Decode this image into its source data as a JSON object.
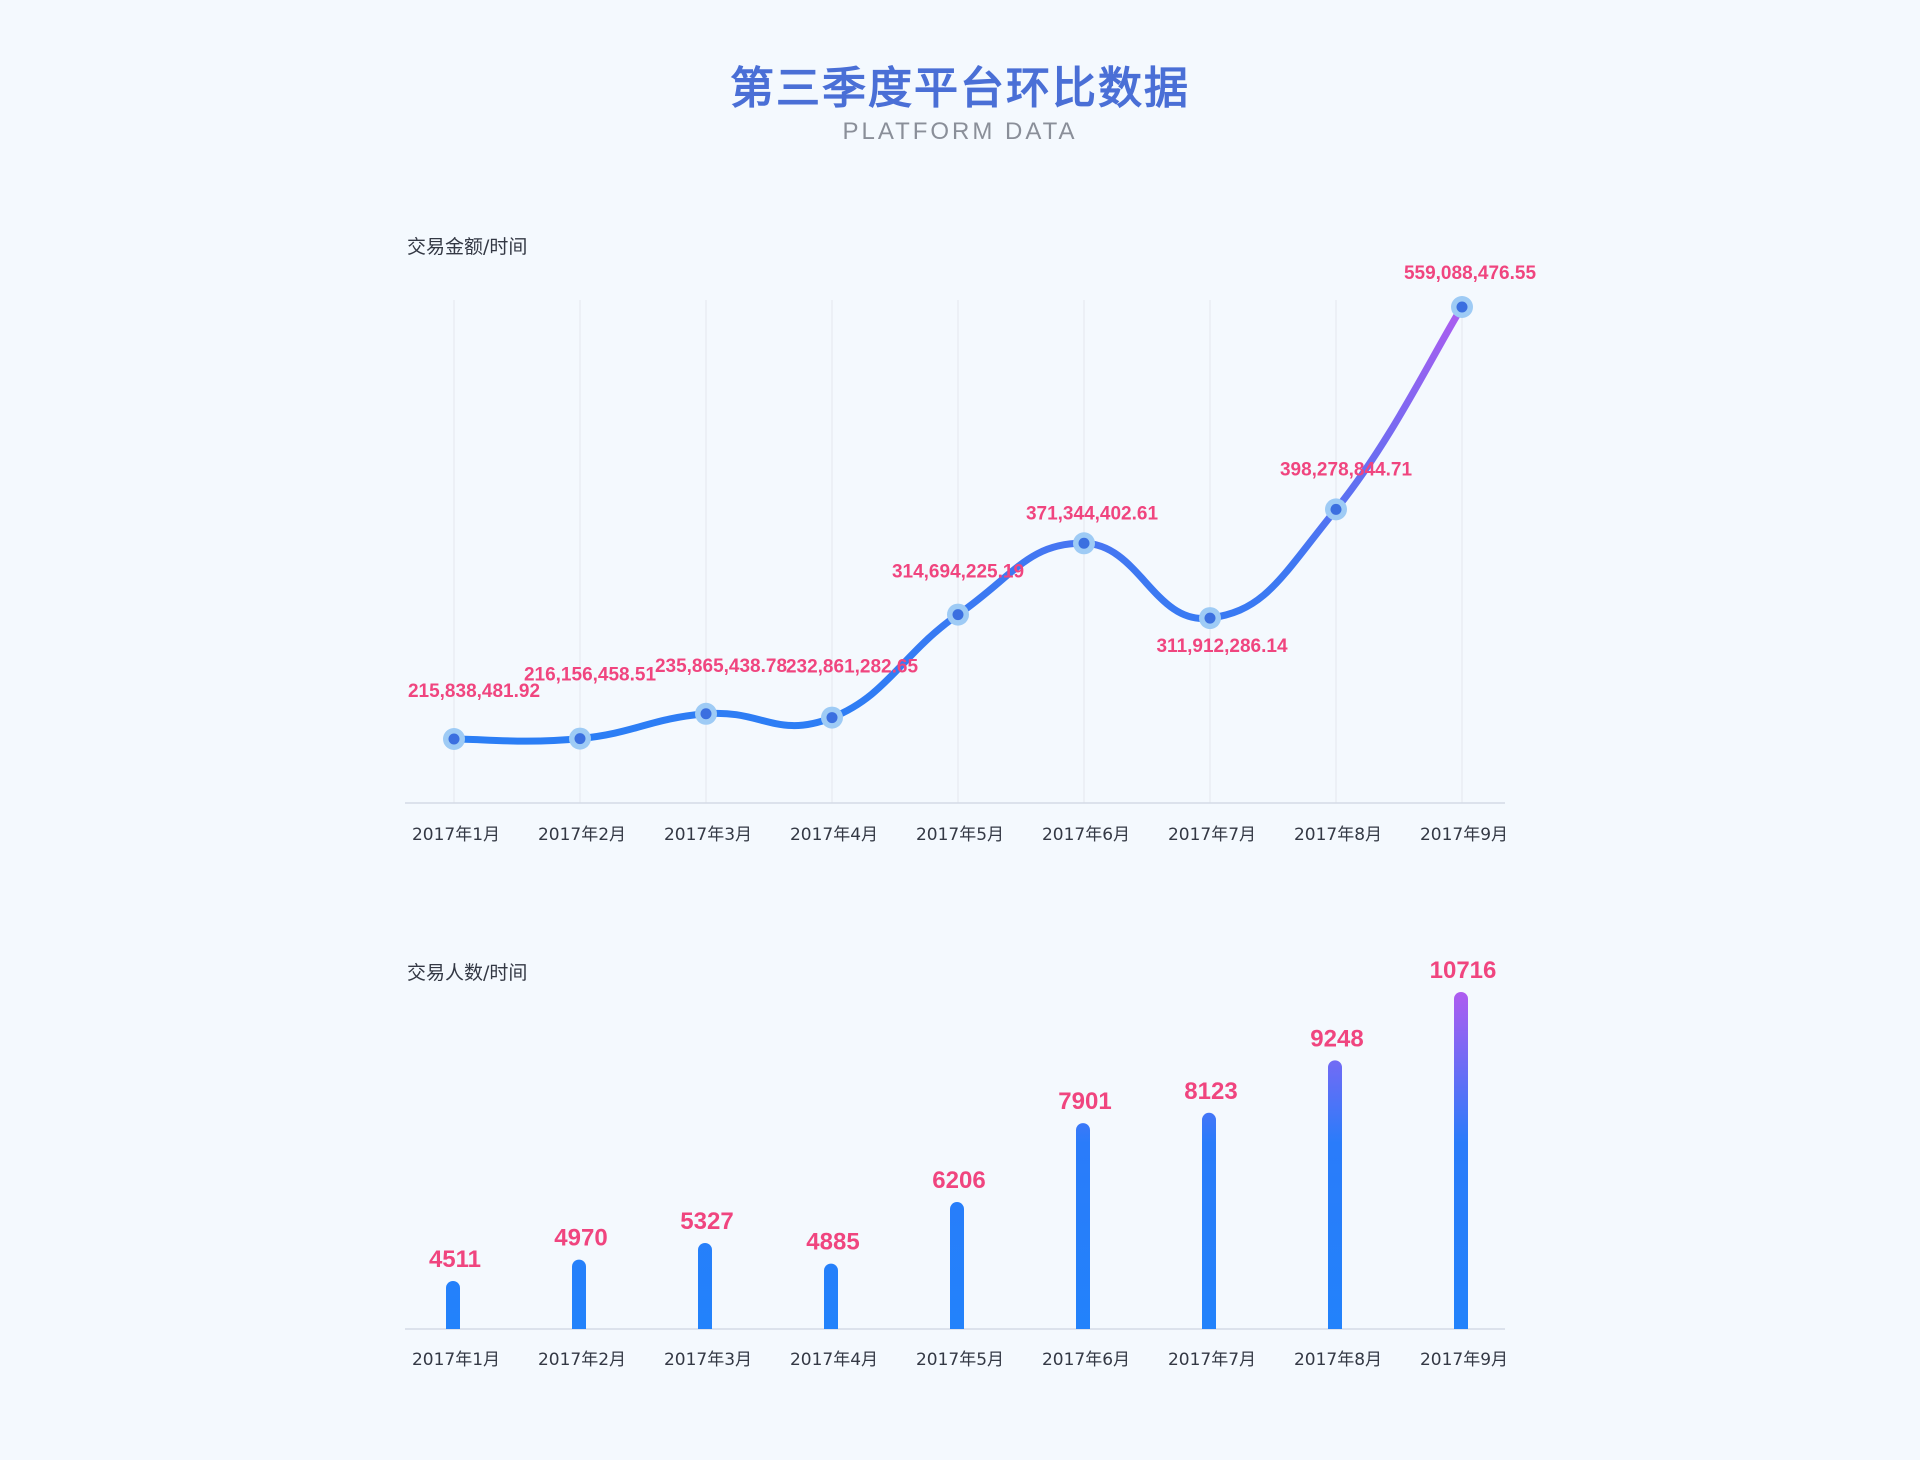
{
  "title": "第三季度平台环比数据",
  "subtitle": "PLATFORM DATA",
  "chart_data": [
    {
      "type": "line",
      "title": "交易金额/时间",
      "categories": [
        "2017年1月",
        "2017年2月",
        "2017年3月",
        "2017年4月",
        "2017年5月",
        "2017年6月",
        "2017年7月",
        "2017年8月",
        "2017年9月"
      ],
      "values": [
        215838481.92,
        216156458.51,
        235865438.78,
        232861282.65,
        314694225.19,
        371344402.61,
        311912286.14,
        398278844.71,
        559088476.55
      ],
      "labels": [
        "215,838,481.92",
        "216,156,458.51",
        "235,865,438.78",
        "232,861,282.65",
        "314,694,225.19",
        "371,344,402.61",
        "311,912,286.14",
        "398,278,844.71",
        "559,088,476.55"
      ],
      "grid": true,
      "colors": {
        "line_start": "#2b7ef5",
        "line_end": "#b05cf0",
        "label": "#f0457f"
      }
    },
    {
      "type": "bar",
      "title": "交易人数/时间",
      "categories": [
        "2017年1月",
        "2017年2月",
        "2017年3月",
        "2017年4月",
        "2017年5月",
        "2017年6月",
        "2017年7月",
        "2017年8月",
        "2017年9月"
      ],
      "values": [
        4511,
        4970,
        5327,
        4885,
        6206,
        7901,
        8123,
        9248,
        10716
      ],
      "grid": false,
      "colors": {
        "bar_bottom": "#2282fb",
        "bar_top": "#b05cf0",
        "label": "#f0457f"
      }
    }
  ]
}
